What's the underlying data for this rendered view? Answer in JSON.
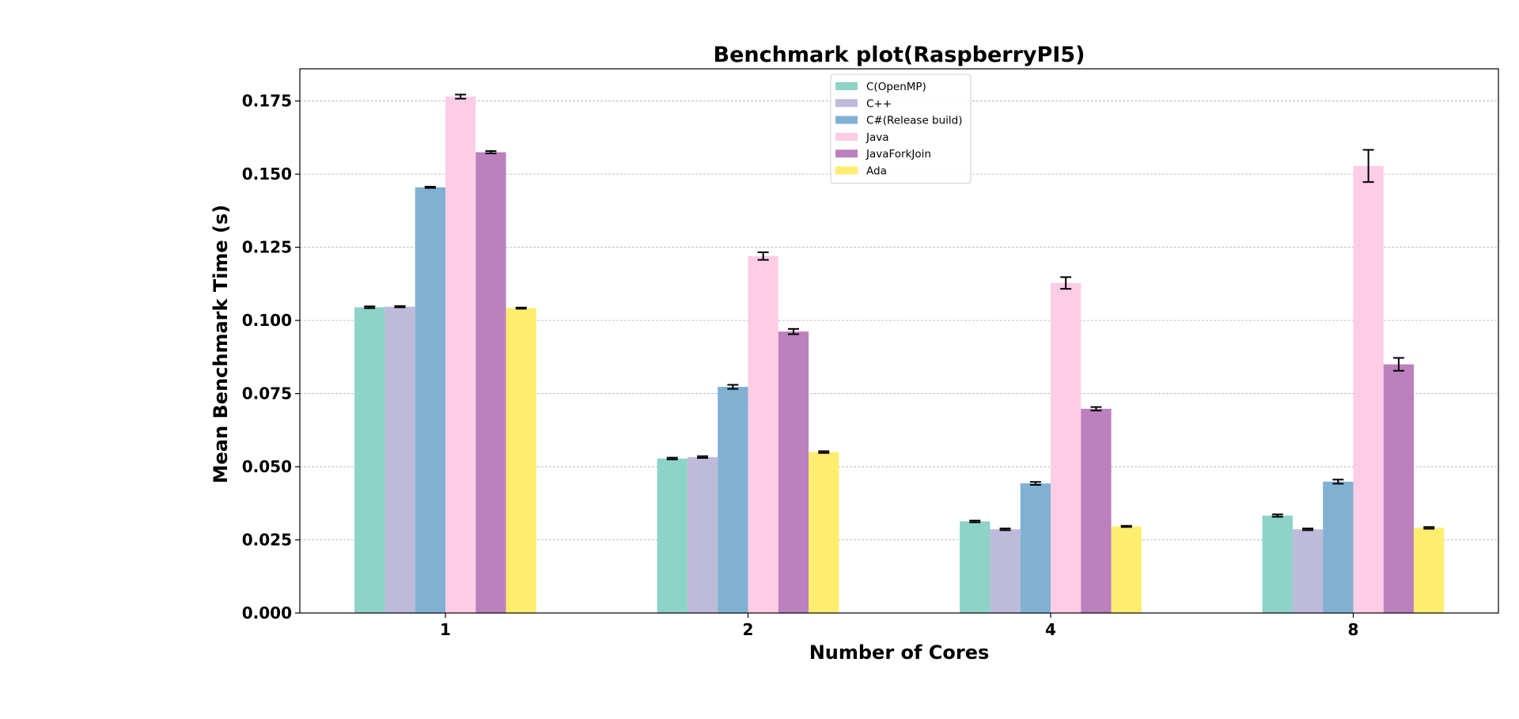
{
  "chart_data": {
    "type": "bar",
    "title": "Benchmark plot(RaspberryPI5)",
    "xlabel": "Number of Cores",
    "ylabel": "Mean Benchmark Time (s)",
    "categories": [
      "1",
      "2",
      "4",
      "8"
    ],
    "ylim": [
      0,
      0.186
    ],
    "yticks": [
      "0.000",
      "0.025",
      "0.050",
      "0.075",
      "0.100",
      "0.125",
      "0.150",
      "0.175"
    ],
    "grid": true,
    "legend_position": "top-center",
    "series": [
      {
        "name": "C(OpenMP)",
        "color": "#8dd3c7",
        "values": [
          0.1045,
          0.0528,
          0.0313,
          0.0333
        ],
        "errors": [
          0.0003,
          0.0003,
          0.0003,
          0.0004
        ]
      },
      {
        "name": "C++",
        "color": "#bebada",
        "values": [
          0.1047,
          0.0533,
          0.0286,
          0.0286
        ],
        "errors": [
          0.0002,
          0.0003,
          0.0003,
          0.0003
        ]
      },
      {
        "name": "C#(Release build)",
        "color": "#80b1d3",
        "values": [
          0.1455,
          0.0773,
          0.0443,
          0.0449
        ],
        "errors": [
          0.0002,
          0.0007,
          0.0005,
          0.0007
        ]
      },
      {
        "name": "Java",
        "color": "#fccde5",
        "values": [
          0.1765,
          0.122,
          0.1128,
          0.1528
        ],
        "errors": [
          0.0007,
          0.0013,
          0.002,
          0.0055
        ]
      },
      {
        "name": "JavaForkJoin",
        "color": "#bc80bd",
        "values": [
          0.1575,
          0.0962,
          0.0698,
          0.085
        ],
        "errors": [
          0.0004,
          0.0009,
          0.0006,
          0.0022
        ]
      },
      {
        "name": "Ada",
        "color": "#ffed6f",
        "values": [
          0.1042,
          0.055,
          0.0296,
          0.0291
        ],
        "errors": [
          0.0002,
          0.0003,
          0.0002,
          0.0003
        ]
      }
    ]
  }
}
